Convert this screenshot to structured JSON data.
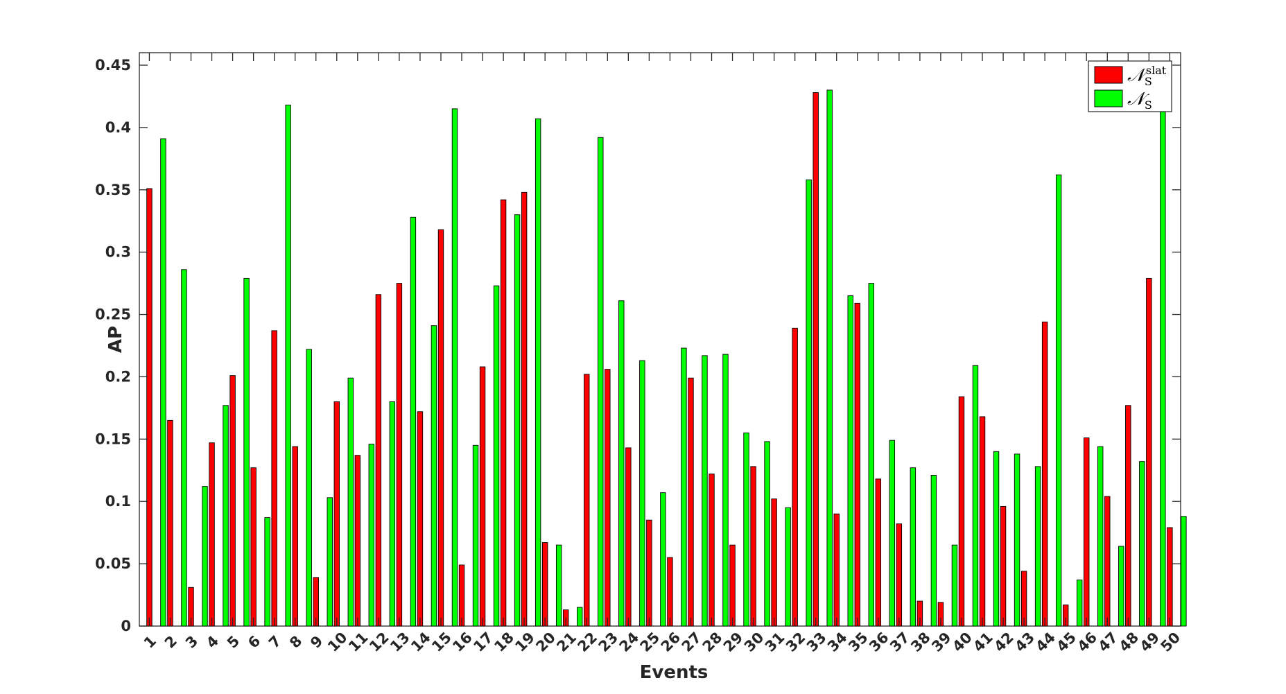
{
  "chart_data": {
    "type": "bar",
    "title": "",
    "xlabel": "Events",
    "ylabel": "AP",
    "ylim": [
      0,
      0.46
    ],
    "yticks": [
      "0",
      "0.05",
      "0.1",
      "0.15",
      "0.2",
      "0.25",
      "0.3",
      "0.35",
      "0.4",
      "0.45"
    ],
    "grid": false,
    "legend_position": "top-right",
    "categories": [
      "1",
      "2",
      "3",
      "4",
      "5",
      "6",
      "7",
      "8",
      "9",
      "10",
      "11",
      "12",
      "13",
      "14",
      "15",
      "16",
      "17",
      "18",
      "19",
      "20",
      "21",
      "22",
      "23",
      "24",
      "25",
      "26",
      "27",
      "28",
      "29",
      "30",
      "31",
      "32",
      "33",
      "34",
      "35",
      "36",
      "37",
      "38",
      "39",
      "40",
      "41",
      "42",
      "43",
      "44",
      "45",
      "46",
      "47",
      "48",
      "49",
      "50"
    ],
    "series": [
      {
        "name": "N_S^slat",
        "color": "#ff0000",
        "values": [
          0.351,
          0.165,
          0.031,
          0.147,
          0.201,
          0.127,
          0.237,
          0.144,
          0.039,
          0.18,
          0.137,
          0.266,
          0.275,
          0.172,
          0.318,
          0.049,
          0.208,
          0.342,
          0.348,
          0.067,
          0.013,
          0.202,
          0.206,
          0.143,
          0.085,
          0.055,
          0.199,
          0.122,
          0.065,
          0.128,
          0.102,
          0.239,
          0.428,
          0.09,
          0.259,
          0.118,
          0.082,
          0.02,
          0.019,
          0.184,
          0.168,
          0.096,
          0.044,
          0.244,
          0.017,
          0.151,
          0.104,
          0.177,
          0.279,
          0.079
        ]
      },
      {
        "name": "N_S",
        "color": "#00ff00",
        "values": [
          0.391,
          0.286,
          0.112,
          0.177,
          0.279,
          0.087,
          0.418,
          0.222,
          0.103,
          0.199,
          0.146,
          0.18,
          0.328,
          0.241,
          0.415,
          0.145,
          0.273,
          0.33,
          0.407,
          0.065,
          0.015,
          0.392,
          0.261,
          0.213,
          0.107,
          0.223,
          0.217,
          0.218,
          0.155,
          0.148,
          0.095,
          0.358,
          0.43,
          0.265,
          0.275,
          0.149,
          0.127,
          0.121,
          0.065,
          0.209,
          0.14,
          0.138,
          0.128,
          0.362,
          0.037,
          0.144,
          0.064,
          0.132,
          0.418,
          0.088
        ]
      }
    ]
  }
}
